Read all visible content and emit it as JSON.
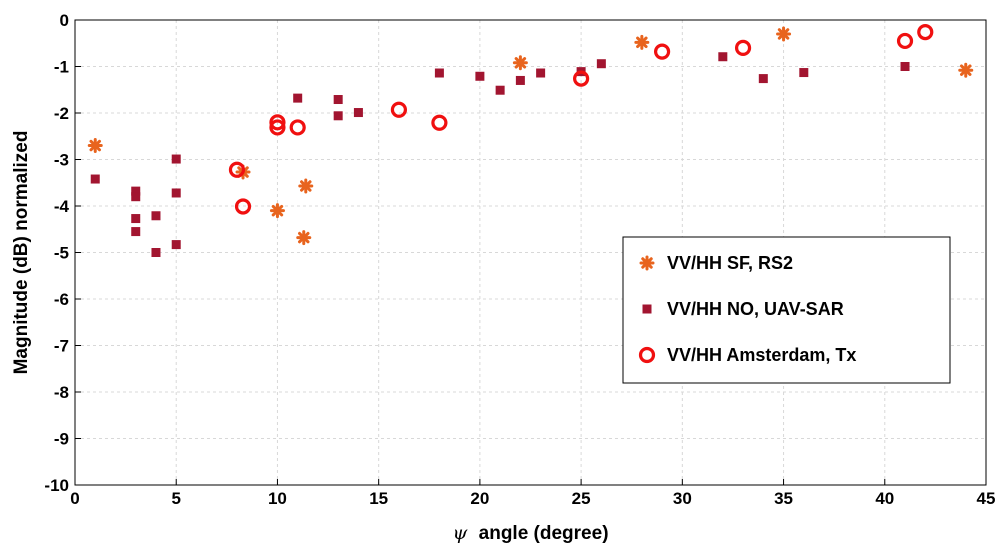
{
  "chart_data": {
    "type": "scatter",
    "xlabel_symbol": "ψ",
    "xlabel": "angle (degree)",
    "ylabel": "Magnitude (dB) normalized",
    "xlim": [
      0,
      45
    ],
    "ylim": [
      -10,
      0
    ],
    "xticks": [
      0,
      5,
      10,
      15,
      20,
      25,
      30,
      35,
      40,
      45
    ],
    "yticks": [
      0,
      -1,
      -2,
      -3,
      -4,
      -5,
      -6,
      -7,
      -8,
      -9,
      -10
    ],
    "grid": true,
    "legend_position": "bottom-right",
    "series": [
      {
        "name": "VV/HH SF, RS2",
        "marker": "asterisk",
        "color": "#e8641e",
        "points": [
          [
            1,
            -2.7
          ],
          [
            8.3,
            -3.27
          ],
          [
            10,
            -4.1
          ],
          [
            11.3,
            -4.68
          ],
          [
            11.4,
            -3.57
          ],
          [
            22,
            -0.92
          ],
          [
            28,
            -0.48
          ],
          [
            35,
            -0.3
          ],
          [
            44,
            -1.08
          ]
        ]
      },
      {
        "name": "VV/HH NO, UAV-SAR",
        "marker": "square",
        "color": "#a21530",
        "points": [
          [
            1,
            -3.42
          ],
          [
            3,
            -3.68
          ],
          [
            3,
            -3.8
          ],
          [
            3,
            -4.27
          ],
          [
            3,
            -4.55
          ],
          [
            4,
            -4.21
          ],
          [
            4,
            -5.0
          ],
          [
            5,
            -2.99
          ],
          [
            5,
            -3.72
          ],
          [
            5,
            -4.83
          ],
          [
            11,
            -1.68
          ],
          [
            13,
            -1.71
          ],
          [
            13,
            -2.06
          ],
          [
            14,
            -1.99
          ],
          [
            18,
            -1.14
          ],
          [
            20,
            -1.21
          ],
          [
            21,
            -1.51
          ],
          [
            22,
            -1.3
          ],
          [
            23,
            -1.14
          ],
          [
            25,
            -1.11
          ],
          [
            26,
            -0.94
          ],
          [
            32,
            -0.79
          ],
          [
            34,
            -1.26
          ],
          [
            36,
            -1.13
          ],
          [
            41,
            -1.0
          ]
        ]
      },
      {
        "name": "VV/HH Amsterdam, Tx",
        "marker": "circle",
        "color": "#f01010",
        "points": [
          [
            8,
            -3.22
          ],
          [
            8.3,
            -4.01
          ],
          [
            10,
            -2.2
          ],
          [
            10,
            -2.31
          ],
          [
            11,
            -2.31
          ],
          [
            16,
            -1.93
          ],
          [
            18,
            -2.21
          ],
          [
            25,
            -1.26
          ],
          [
            29,
            -0.68
          ],
          [
            33,
            -0.6
          ],
          [
            41,
            -0.45
          ],
          [
            42,
            -0.26
          ]
        ]
      }
    ]
  },
  "colors": {
    "background": "#ffffff",
    "grid": "#d8d8d8",
    "axis": "#000000"
  }
}
